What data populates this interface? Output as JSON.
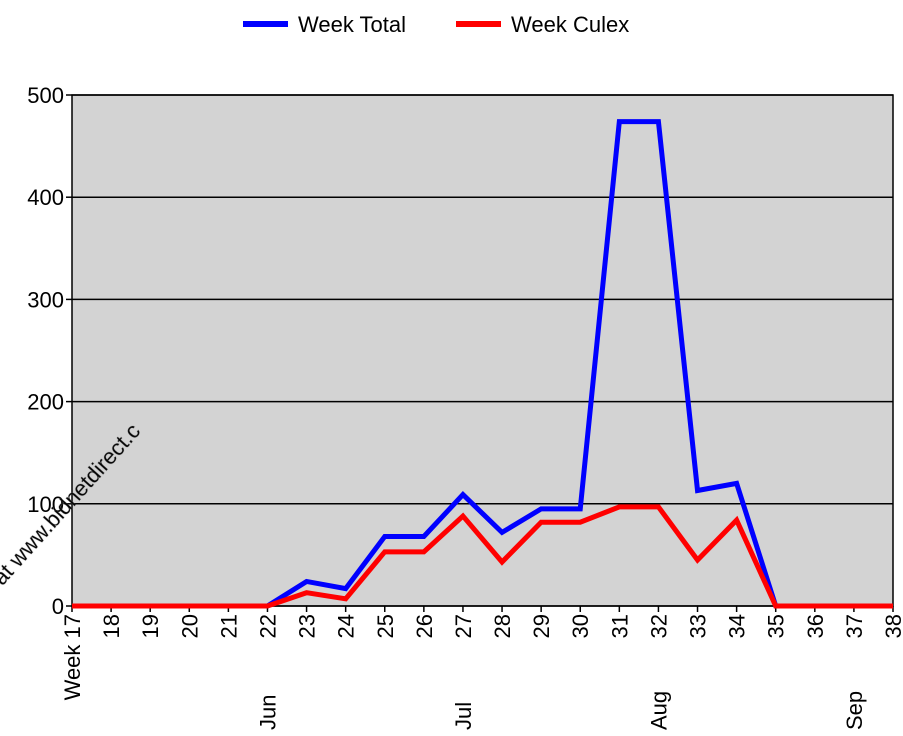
{
  "chart_data": {
    "type": "line",
    "categories": [
      "Week 17",
      "18",
      "19",
      "20",
      "21",
      "22",
      "23",
      "24",
      "25",
      "26",
      "27",
      "28",
      "29",
      "30",
      "31",
      "32",
      "33",
      "34",
      "35",
      "36",
      "37",
      "38"
    ],
    "months": [
      null,
      null,
      null,
      null,
      null,
      "Jun",
      null,
      null,
      null,
      null,
      "Jul",
      null,
      null,
      null,
      null,
      "Aug",
      null,
      null,
      null,
      null,
      "Sep",
      null
    ],
    "series": [
      {
        "name": "Week Total",
        "color": "#0000ff",
        "values": [
          0,
          0,
          0,
          0,
          0,
          0,
          24,
          17,
          68,
          68,
          109,
          72,
          95,
          95,
          474,
          474,
          113,
          120,
          0,
          0,
          0,
          0
        ]
      },
      {
        "name": "Week Culex",
        "color": "#ff0000",
        "values": [
          0,
          0,
          0,
          0,
          0,
          0,
          13,
          7,
          53,
          53,
          88,
          43,
          82,
          82,
          97,
          97,
          45,
          84,
          0,
          0,
          0,
          0
        ]
      }
    ],
    "ylim": [
      0,
      500
    ],
    "yticks": [
      0,
      100,
      200,
      300,
      400,
      500
    ],
    "grid": true,
    "legend": "top",
    "watermark": "a at www.bidnetdirect.c"
  }
}
